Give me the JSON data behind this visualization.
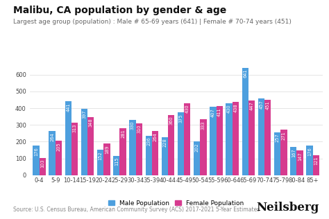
{
  "title": "Malibu, CA population by gender & age",
  "subtitle": "Largest age group (population) : Male # 65-69 years (641) | Female # 70-74 years (451)",
  "categories": [
    "0-4",
    "5-9",
    "10-14",
    "15-19",
    "20-24",
    "25-29",
    "30-34",
    "35-39",
    "40-44",
    "45-49",
    "50-54",
    "55-59",
    "60-64",
    "65-69",
    "70-74",
    "75-79",
    "80-84",
    "85+"
  ],
  "male_values": [
    176,
    264,
    441,
    397,
    152,
    115,
    330,
    236,
    228,
    375,
    202,
    407,
    430,
    641,
    457,
    257,
    167,
    176
  ],
  "female_values": [
    103,
    205,
    313,
    348,
    189,
    281,
    310,
    264,
    360,
    430,
    333,
    411,
    438,
    447,
    451,
    271,
    147,
    121
  ],
  "male_color": "#4d9fde",
  "female_color": "#d63b8f",
  "ylabel": "",
  "xlabel": "",
  "ylim": [
    0,
    680
  ],
  "yticks": [
    0,
    100,
    200,
    300,
    400,
    500,
    600
  ],
  "legend_labels": [
    "Male Population",
    "Female Population"
  ],
  "source_text": "Source: U.S. Census Bureau, American Community Survey (ACS) 2017-2021 5-Year Estimates",
  "brand_text": "Neilsberg",
  "background_color": "#ffffff",
  "grid_color": "#e0e0e0",
  "title_fontsize": 10,
  "subtitle_fontsize": 6.5,
  "tick_fontsize": 6,
  "label_fontsize": 4.8,
  "legend_fontsize": 6.5,
  "source_fontsize": 5.5,
  "brand_fontsize": 12
}
